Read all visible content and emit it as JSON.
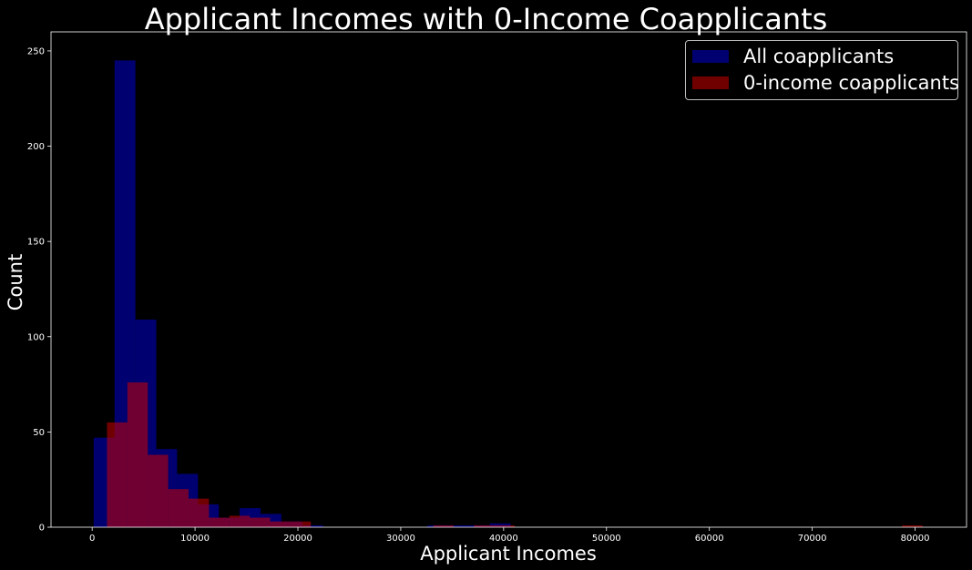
{
  "chart_data": {
    "type": "bar",
    "title": "Applicant Incomes with 0-Income Coapplicants",
    "xlabel": "Applicant Incomes",
    "ylabel": "Count",
    "xlim": [
      -4000,
      85000
    ],
    "ylim": [
      0,
      260
    ],
    "xticks": [
      0,
      10000,
      20000,
      30000,
      40000,
      50000,
      60000,
      70000,
      80000
    ],
    "yticks": [
      0,
      50,
      100,
      150,
      200,
      250
    ],
    "grid": false,
    "legend_position": "top-right",
    "series": [
      {
        "name": "All coapplicants",
        "color": "#0000cc",
        "opacity": 0.55,
        "bin_edges": [
          150,
          2177,
          4204,
          6231,
          8258,
          10285,
          12312,
          14339,
          16366,
          18393,
          20420,
          22447,
          24474,
          26501,
          28528,
          30555,
          32582,
          34609,
          36636,
          38663,
          40690
        ],
        "values": [
          47,
          245,
          109,
          41,
          28,
          12,
          5,
          10,
          7,
          3,
          1,
          0,
          0,
          0,
          0,
          0,
          1,
          1,
          1,
          2
        ]
      },
      {
        "name": "0-income coapplicants",
        "color": "#cc0000",
        "opacity": 0.55,
        "bin_edges": [
          1442,
          3424,
          5406,
          7388,
          9370,
          11352,
          13334,
          15316,
          17298,
          19280,
          21262,
          23244,
          25226,
          27208,
          29190,
          31172,
          33154,
          35136,
          37118,
          39100,
          41082,
          43064,
          45046,
          47028,
          49010,
          50992,
          52974,
          54956,
          56938,
          58920,
          60902,
          62884,
          64866,
          66848,
          68830,
          70812,
          72794,
          74776,
          76758,
          78740,
          80722
        ],
        "values": [
          55,
          76,
          38,
          20,
          15,
          5,
          6,
          5,
          3,
          3,
          0,
          0,
          0,
          0,
          0,
          0,
          1,
          0,
          1,
          1,
          0,
          0,
          0,
          0,
          0,
          0,
          0,
          0,
          0,
          0,
          0,
          0,
          0,
          0,
          0,
          0,
          0,
          0,
          0,
          1
        ]
      }
    ]
  }
}
